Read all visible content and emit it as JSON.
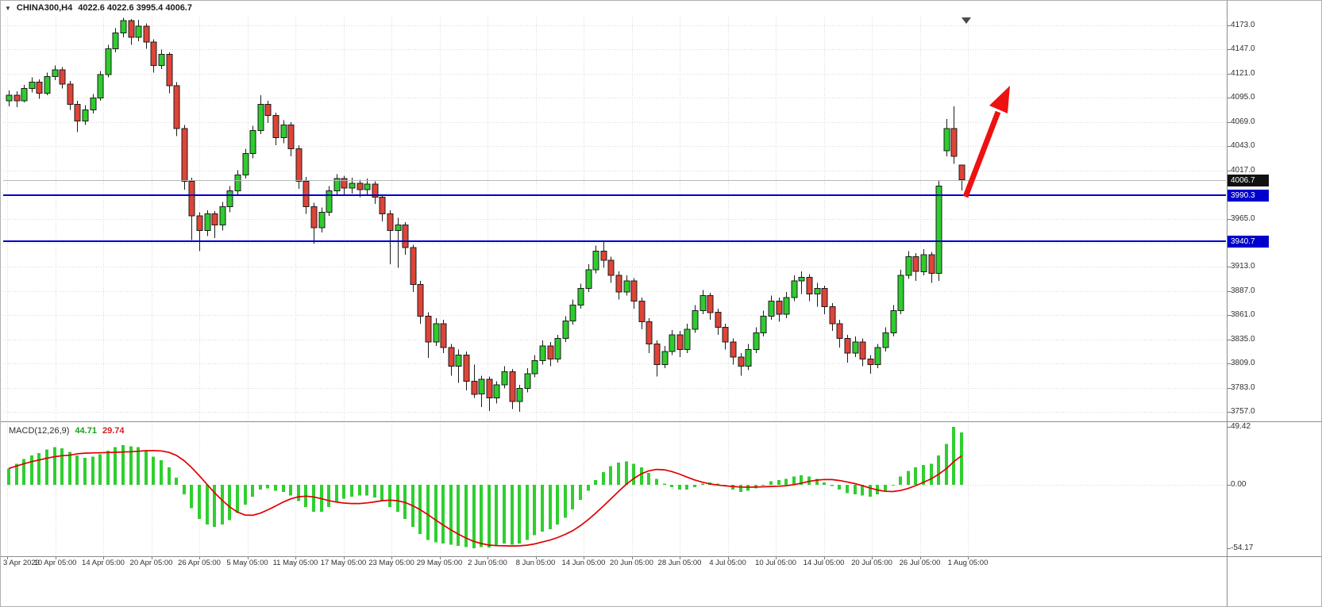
{
  "header": {
    "symbol": "CHINA300,H4",
    "ohlc": "4022.6 4022.6 3995.4 4006.7",
    "dropdown_icon": "▼"
  },
  "macd_panel": {
    "label": "MACD(12,26,9)",
    "value_main": "44.71",
    "value_signal": "29.74"
  },
  "colors": {
    "bull": "#2ECC2E",
    "bear": "#DE4437",
    "outline": "#1C1C1C",
    "grid": "#D9D9D9",
    "level_line": "#0000CD",
    "current_badge_bg": "#111111",
    "current_price_line": "#B8B8B8",
    "signal_line": "#E00000",
    "histogram": "#2FCF2F",
    "arrow": "#EE1111",
    "axis_text": "#2F2F2F"
  },
  "chart_data": {
    "type": "candlestick",
    "title": "CHINA300,H4",
    "y_axis": {
      "min": 3757,
      "max": 4173,
      "tick_step": 26,
      "tick_labels": [
        "4173.0",
        "4147.0",
        "4121.0",
        "4095.0",
        "4069.0",
        "4043.0",
        "4017.0",
        "3991.0",
        "3965.0",
        "3939.0",
        "3913.0",
        "3887.0",
        "3861.0",
        "3835.0",
        "3809.0",
        "3783.0",
        "3757.0"
      ]
    },
    "x_labels": [
      "3 Apr 2023",
      "10 Apr 05:00",
      "14 Apr 05:00",
      "20 Apr 05:00",
      "26 Apr 05:00",
      "5 May 05:00",
      "11 May 05:00",
      "17 May 05:00",
      "23 May 05:00",
      "29 May 05:00",
      "2 Jun 05:00",
      "8 Jun 05:00",
      "14 Jun 05:00",
      "20 Jun 05:00",
      "28 Jun 05:00",
      "4 Jul 05:00",
      "10 Jul 05:00",
      "14 Jul 05:00",
      "20 Jul 05:00",
      "26 Jul 05:00",
      "1 Aug 05:00"
    ],
    "levels": [
      {
        "price": 3990.3,
        "label": "3990.3"
      },
      {
        "price": 3940.7,
        "label": "3940.7"
      }
    ],
    "current_price": {
      "value": 4006.7,
      "label": "4006.7"
    },
    "annotations": [
      {
        "type": "up-arrow",
        "description": "red bullish projection arrow above latest candles"
      }
    ],
    "candles_ohlc": [
      [
        4092,
        4103,
        4086,
        4098
      ],
      [
        4098,
        4102,
        4085,
        4092
      ],
      [
        4092,
        4109,
        4090,
        4105
      ],
      [
        4105,
        4117,
        4101,
        4112
      ],
      [
        4112,
        4115,
        4094,
        4100
      ],
      [
        4100,
        4122,
        4098,
        4118
      ],
      [
        4118,
        4130,
        4114,
        4125
      ],
      [
        4125,
        4128,
        4105,
        4110
      ],
      [
        4110,
        4113,
        4082,
        4088
      ],
      [
        4088,
        4092,
        4058,
        4070
      ],
      [
        4070,
        4087,
        4066,
        4082
      ],
      [
        4082,
        4099,
        4078,
        4095
      ],
      [
        4095,
        4124,
        4092,
        4120
      ],
      [
        4120,
        4152,
        4117,
        4148
      ],
      [
        4148,
        4170,
        4144,
        4165
      ],
      [
        4165,
        4181,
        4160,
        4178
      ],
      [
        4178,
        4180,
        4152,
        4160
      ],
      [
        4160,
        4179,
        4156,
        4172
      ],
      [
        4172,
        4175,
        4148,
        4155
      ],
      [
        4155,
        4158,
        4122,
        4130
      ],
      [
        4130,
        4147,
        4126,
        4142
      ],
      [
        4142,
        4144,
        4100,
        4108
      ],
      [
        4108,
        4112,
        4054,
        4062
      ],
      [
        4062,
        4066,
        3996,
        4005
      ],
      [
        4005,
        4009,
        3942,
        3968
      ],
      [
        3968,
        3972,
        3930,
        3952
      ],
      [
        3952,
        3974,
        3946,
        3970
      ],
      [
        3970,
        3973,
        3944,
        3958
      ],
      [
        3958,
        3983,
        3952,
        3978
      ],
      [
        3978,
        4000,
        3972,
        3995
      ],
      [
        3995,
        4017,
        3990,
        4012
      ],
      [
        4012,
        4040,
        4008,
        4035
      ],
      [
        4035,
        4065,
        4030,
        4060
      ],
      [
        4060,
        4098,
        4056,
        4088
      ],
      [
        4088,
        4092,
        4068,
        4076
      ],
      [
        4076,
        4079,
        4044,
        4052
      ],
      [
        4052,
        4071,
        4046,
        4066
      ],
      [
        4066,
        4069,
        4032,
        4040
      ],
      [
        4040,
        4044,
        3997,
        4005
      ],
      [
        4005,
        4010,
        3970,
        3978
      ],
      [
        3978,
        3982,
        3938,
        3955
      ],
      [
        3955,
        3977,
        3950,
        3972
      ],
      [
        3972,
        4000,
        3968,
        3995
      ],
      [
        3995,
        4013,
        3991,
        4008
      ],
      [
        4008,
        4011,
        3990,
        3998
      ],
      [
        3998,
        4009,
        3992,
        4003
      ],
      [
        4003,
        4007,
        3988,
        3996
      ],
      [
        3996,
        4008,
        3991,
        4002
      ],
      [
        4002,
        4005,
        3981,
        3988
      ],
      [
        3988,
        3991,
        3962,
        3970
      ],
      [
        3970,
        3974,
        3916,
        3952
      ],
      [
        3952,
        3966,
        3912,
        3958
      ],
      [
        3958,
        3961,
        3926,
        3934
      ],
      [
        3934,
        3937,
        3886,
        3894
      ],
      [
        3894,
        3898,
        3852,
        3860
      ],
      [
        3860,
        3864,
        3815,
        3832
      ],
      [
        3832,
        3858,
        3828,
        3852
      ],
      [
        3852,
        3856,
        3820,
        3826
      ],
      [
        3826,
        3830,
        3796,
        3806
      ],
      [
        3806,
        3824,
        3788,
        3818
      ],
      [
        3818,
        3822,
        3780,
        3790
      ],
      [
        3790,
        3808,
        3772,
        3776
      ],
      [
        3776,
        3796,
        3762,
        3792
      ],
      [
        3792,
        3795,
        3758,
        3772
      ],
      [
        3772,
        3790,
        3766,
        3786
      ],
      [
        3786,
        3806,
        3782,
        3800
      ],
      [
        3800,
        3803,
        3760,
        3768
      ],
      [
        3768,
        3786,
        3757,
        3782
      ],
      [
        3782,
        3804,
        3778,
        3798
      ],
      [
        3798,
        3818,
        3794,
        3812
      ],
      [
        3812,
        3834,
        3808,
        3828
      ],
      [
        3828,
        3832,
        3806,
        3814
      ],
      [
        3814,
        3840,
        3810,
        3836
      ],
      [
        3836,
        3860,
        3832,
        3855
      ],
      [
        3855,
        3878,
        3851,
        3872
      ],
      [
        3872,
        3895,
        3868,
        3890
      ],
      [
        3890,
        3916,
        3886,
        3910
      ],
      [
        3910,
        3936,
        3906,
        3930
      ],
      [
        3930,
        3940,
        3912,
        3920
      ],
      [
        3920,
        3924,
        3896,
        3904
      ],
      [
        3904,
        3908,
        3878,
        3886
      ],
      [
        3886,
        3904,
        3882,
        3898
      ],
      [
        3898,
        3901,
        3868,
        3876
      ],
      [
        3876,
        3880,
        3846,
        3854
      ],
      [
        3854,
        3858,
        3820,
        3830
      ],
      [
        3830,
        3834,
        3795,
        3808
      ],
      [
        3808,
        3828,
        3804,
        3822
      ],
      [
        3822,
        3845,
        3818,
        3840
      ],
      [
        3840,
        3844,
        3816,
        3824
      ],
      [
        3824,
        3852,
        3820,
        3846
      ],
      [
        3846,
        3872,
        3842,
        3866
      ],
      [
        3866,
        3888,
        3862,
        3882
      ],
      [
        3882,
        3885,
        3856,
        3864
      ],
      [
        3864,
        3868,
        3840,
        3848
      ],
      [
        3848,
        3852,
        3824,
        3832
      ],
      [
        3832,
        3836,
        3808,
        3816
      ],
      [
        3816,
        3820,
        3796,
        3806
      ],
      [
        3806,
        3830,
        3802,
        3824
      ],
      [
        3824,
        3848,
        3820,
        3842
      ],
      [
        3842,
        3866,
        3838,
        3860
      ],
      [
        3860,
        3882,
        3856,
        3876
      ],
      [
        3876,
        3880,
        3854,
        3862
      ],
      [
        3862,
        3886,
        3858,
        3880
      ],
      [
        3880,
        3904,
        3876,
        3898
      ],
      [
        3898,
        3908,
        3884,
        3902
      ],
      [
        3902,
        3905,
        3876,
        3884
      ],
      [
        3884,
        3896,
        3870,
        3890
      ],
      [
        3890,
        3893,
        3862,
        3870
      ],
      [
        3870,
        3874,
        3844,
        3852
      ],
      [
        3852,
        3856,
        3826,
        3836
      ],
      [
        3836,
        3840,
        3810,
        3820
      ],
      [
        3820,
        3838,
        3816,
        3832
      ],
      [
        3832,
        3836,
        3806,
        3814
      ],
      [
        3814,
        3818,
        3798,
        3808
      ],
      [
        3808,
        3830,
        3804,
        3826
      ],
      [
        3826,
        3848,
        3822,
        3842
      ],
      [
        3842,
        3872,
        3838,
        3866
      ],
      [
        3866,
        3910,
        3862,
        3904
      ],
      [
        3904,
        3930,
        3900,
        3924
      ],
      [
        3924,
        3928,
        3898,
        3908
      ],
      [
        3908,
        3932,
        3904,
        3926
      ],
      [
        3926,
        3929,
        3896,
        3906
      ],
      [
        3906,
        4006,
        3898,
        4000
      ],
      [
        4038,
        4072,
        4032,
        4062
      ],
      [
        4062,
        4086,
        4024,
        4032
      ],
      [
        4022.6,
        4022.6,
        3995.4,
        4006.7
      ]
    ],
    "macd": {
      "label": "MACD(12,26,9)",
      "signal_period": 9,
      "current_macd": 44.71,
      "current_signal": 29.74,
      "axis_labels": [
        "49.42",
        "0.00",
        "-54.17"
      ],
      "range": [
        -54.17,
        49.42
      ],
      "histogram": [
        14,
        18,
        22,
        25,
        27,
        30,
        32,
        31,
        28,
        25,
        23,
        24,
        26,
        29,
        32,
        34,
        33,
        32,
        29,
        24,
        21,
        15,
        6,
        -8,
        -20,
        -29,
        -34,
        -36,
        -34,
        -30,
        -24,
        -17,
        -10,
        -4,
        -3,
        -5,
        -6,
        -9,
        -14,
        -19,
        -23,
        -23,
        -19,
        -15,
        -12,
        -10,
        -9,
        -9,
        -11,
        -14,
        -19,
        -23,
        -29,
        -36,
        -42,
        -47,
        -49,
        -50,
        -51,
        -52,
        -53,
        -54.17,
        -53,
        -53.5,
        -52,
        -50,
        -51,
        -50,
        -47,
        -43,
        -40,
        -38,
        -34,
        -28,
        -21,
        -13,
        -5,
        4,
        11,
        16,
        19,
        20,
        18,
        15,
        10,
        5,
        1,
        -2,
        -4,
        -4,
        -2,
        1,
        2,
        1,
        -1,
        -4,
        -6,
        -5,
        -3,
        0,
        3,
        4,
        5,
        7,
        8,
        7,
        5,
        2,
        -1,
        -4,
        -7,
        -8,
        -9,
        -10,
        -8,
        -5,
        0,
        7,
        12,
        15,
        17,
        18,
        25,
        35,
        49.42,
        44.71
      ]
    }
  }
}
